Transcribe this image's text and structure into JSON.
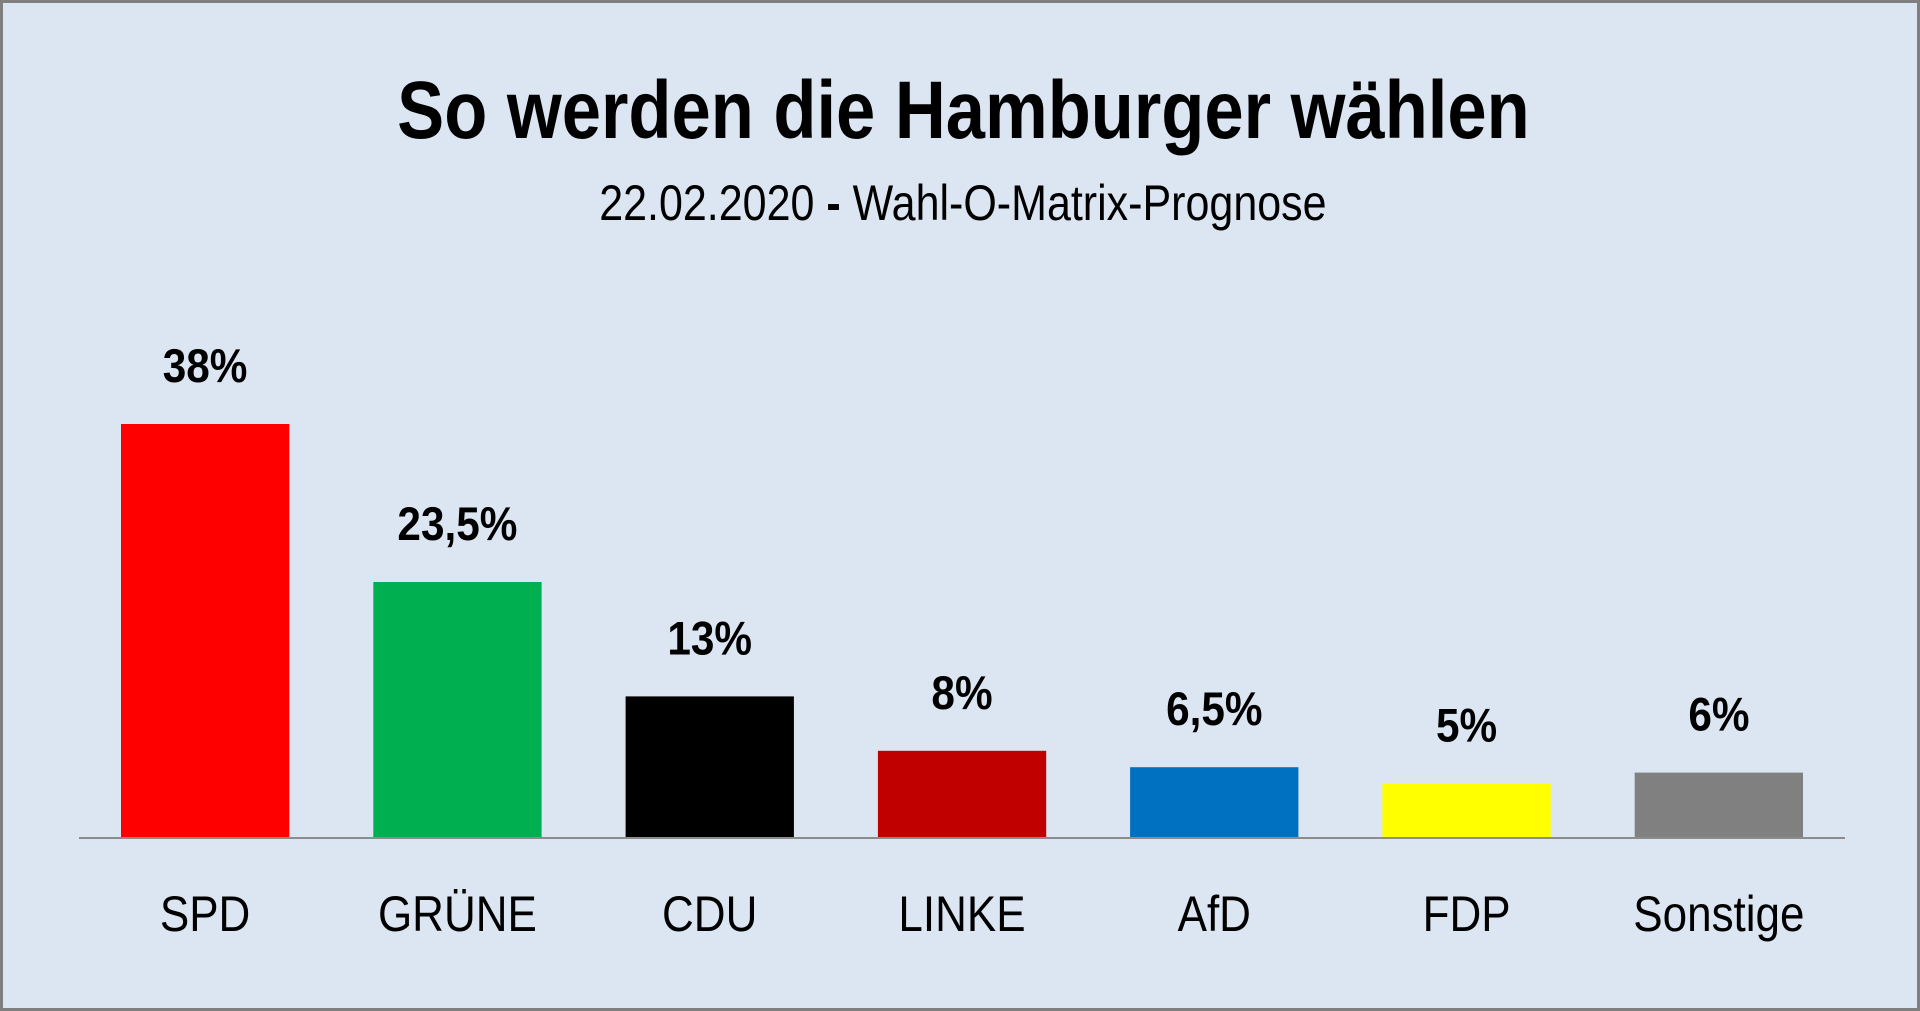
{
  "chart_data": {
    "type": "bar",
    "title": "So werden die Hamburger wählen",
    "subtitle": {
      "date": "22.02.2020",
      "separator": "-",
      "description": "Wahl-O-Matrix-Prognose"
    },
    "xlabel": "",
    "ylabel": "",
    "ylim": [
      0,
      38
    ],
    "grid": false,
    "legend": "none",
    "unit": "%",
    "categories": [
      "SPD",
      "GRÜNE",
      "CDU",
      "LINKE",
      "AfD",
      "FDP",
      "Sonstige"
    ],
    "values": [
      38,
      23.5,
      13,
      8,
      6.5,
      5,
      6
    ],
    "data_labels": [
      "38%",
      "23,5%",
      "13%",
      "8%",
      "6,5%",
      "5%",
      "6%"
    ],
    "colors": [
      "#ff0000",
      "#00b050",
      "#000000",
      "#c00000",
      "#0070c0",
      "#ffff00",
      "#808080"
    ]
  },
  "theme": {
    "background": "#dce6f2",
    "border": "#7f7f7f",
    "axis": "#8c8c8c"
  }
}
